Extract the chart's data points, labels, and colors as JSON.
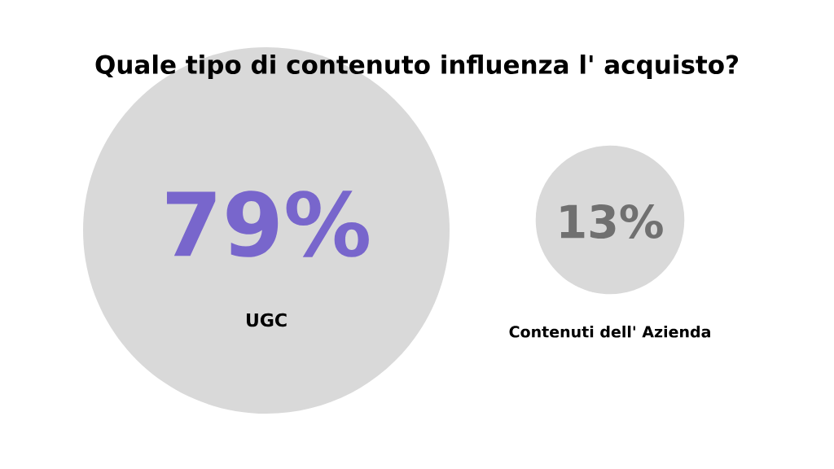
{
  "chart_data": {
    "type": "other",
    "title": "Quale tipo di contenuto influenza l' acquisto?",
    "categories": [
      "UGC",
      "Contenuti dell' Azienda"
    ],
    "values": [
      79,
      13
    ],
    "value_labels": [
      "79%",
      "13%"
    ],
    "colors": [
      "#d9d9d9",
      "#d9d9d9"
    ]
  }
}
